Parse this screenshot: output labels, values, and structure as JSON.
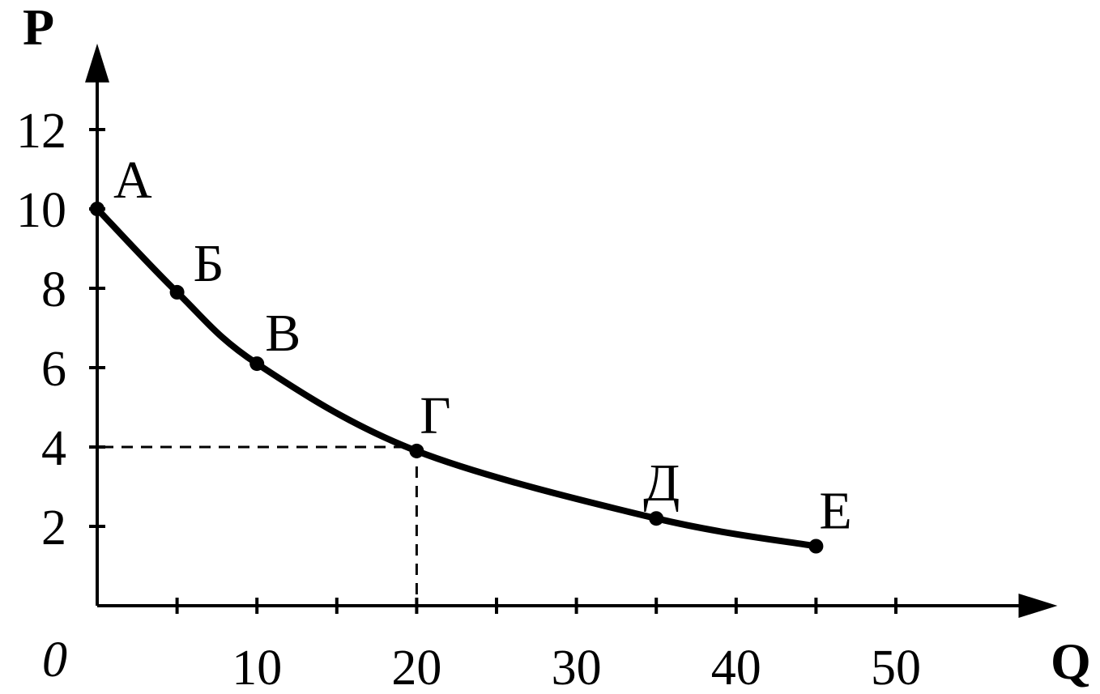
{
  "chart_data": {
    "type": "line",
    "xlabel": "Q",
    "ylabel": "P",
    "origin_label": "0",
    "xlim": [
      0,
      59
    ],
    "ylim": [
      0,
      13.8
    ],
    "x_ticks": [
      5,
      10,
      15,
      20,
      25,
      30,
      35,
      40,
      45,
      50
    ],
    "x_tick_labels": [
      {
        "value": 10,
        "label": "10"
      },
      {
        "value": 20,
        "label": "20"
      },
      {
        "value": 30,
        "label": "30"
      },
      {
        "value": 40,
        "label": "40"
      },
      {
        "value": 50,
        "label": "50"
      }
    ],
    "y_ticks": [
      {
        "value": 2,
        "label": "2"
      },
      {
        "value": 4,
        "label": "4"
      },
      {
        "value": 6,
        "label": "6"
      },
      {
        "value": 8,
        "label": "8"
      },
      {
        "value": 10,
        "label": "10"
      },
      {
        "value": 12,
        "label": "12"
      }
    ],
    "points": [
      {
        "label": "А",
        "x": 0,
        "y": 10
      },
      {
        "label": "Б",
        "x": 5,
        "y": 7.9
      },
      {
        "label": "В",
        "x": 10,
        "y": 6.1
      },
      {
        "label": "Г",
        "x": 20,
        "y": 3.9
      },
      {
        "label": "Д",
        "x": 35,
        "y": 2.2
      },
      {
        "label": "Е",
        "x": 45,
        "y": 1.5
      }
    ],
    "reference_lines": {
      "x": 20,
      "y": 4
    },
    "grid": false,
    "legend": "none",
    "colors": {
      "line": "#000000",
      "background": "#ffffff"
    }
  }
}
